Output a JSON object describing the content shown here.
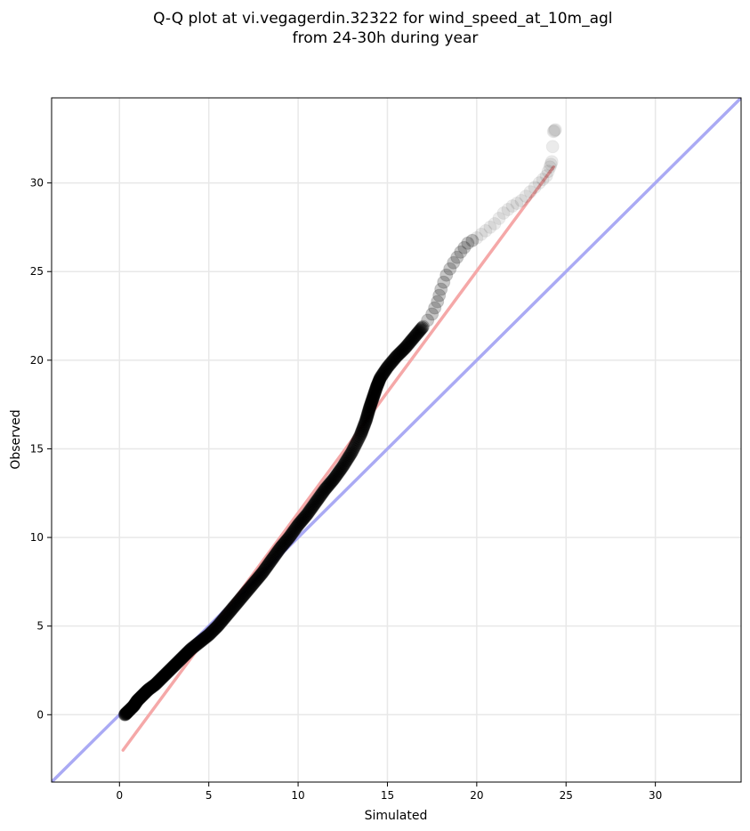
{
  "chart_data": {
    "type": "scatter",
    "title": "Q-Q plot at vi.vegagerdin.32322 for wind_speed_at_10m_agl\nfrom 24-30h during year",
    "xlabel": "Simulated",
    "ylabel": "Observed",
    "xlim": [
      -3.8,
      34.8
    ],
    "ylim": [
      -3.8,
      34.8
    ],
    "xticks": [
      0,
      5,
      10,
      15,
      20,
      25,
      30
    ],
    "yticks": [
      0,
      5,
      10,
      15,
      20,
      25,
      30
    ],
    "grid": true,
    "colors": {
      "points": "#000000",
      "identity_line": "#aaaaf4",
      "fit_line": "#f5a8a8",
      "grid": "#e8e8e8"
    },
    "identity_line": {
      "x": [
        -3.8,
        34.8
      ],
      "y": [
        -3.8,
        34.8
      ]
    },
    "fit_line": {
      "x": [
        0.2,
        24.3
      ],
      "y": [
        -2.0,
        30.9
      ]
    },
    "series": [
      {
        "points": [
          [
            0.3,
            0.0
          ],
          [
            0.5,
            0.2
          ],
          [
            0.8,
            0.5
          ],
          [
            1.0,
            0.8
          ],
          [
            1.3,
            1.1
          ],
          [
            1.6,
            1.4
          ],
          [
            2.0,
            1.7
          ],
          [
            2.4,
            2.1
          ],
          [
            2.8,
            2.5
          ],
          [
            3.2,
            2.9
          ],
          [
            3.6,
            3.3
          ],
          [
            4.0,
            3.7
          ],
          [
            4.5,
            4.1
          ],
          [
            5.0,
            4.5
          ],
          [
            5.5,
            5.0
          ],
          [
            6.0,
            5.6
          ],
          [
            6.5,
            6.2
          ],
          [
            7.0,
            6.8
          ],
          [
            7.5,
            7.4
          ],
          [
            8.0,
            8.0
          ],
          [
            8.5,
            8.7
          ],
          [
            9.0,
            9.4
          ],
          [
            9.5,
            10.0
          ],
          [
            10.0,
            10.7
          ],
          [
            10.5,
            11.3
          ],
          [
            11.0,
            12.0
          ],
          [
            11.5,
            12.7
          ],
          [
            12.0,
            13.3
          ],
          [
            12.5,
            14.0
          ],
          [
            13.0,
            14.8
          ],
          [
            13.5,
            15.8
          ],
          [
            13.8,
            16.6
          ],
          [
            14.0,
            17.3
          ],
          [
            14.2,
            17.9
          ],
          [
            14.4,
            18.5
          ],
          [
            14.6,
            19.0
          ],
          [
            15.0,
            19.6
          ],
          [
            15.5,
            20.2
          ],
          [
            16.0,
            20.7
          ],
          [
            16.5,
            21.3
          ],
          [
            17.0,
            21.9
          ],
          [
            17.5,
            22.6
          ],
          [
            17.8,
            23.3
          ],
          [
            18.0,
            24.0
          ],
          [
            18.3,
            24.8
          ],
          [
            18.7,
            25.5
          ],
          [
            19.1,
            26.1
          ],
          [
            19.5,
            26.6
          ],
          [
            20.0,
            26.9
          ],
          [
            20.5,
            27.3
          ],
          [
            21.0,
            27.7
          ],
          [
            21.5,
            28.3
          ],
          [
            22.0,
            28.7
          ],
          [
            22.5,
            29.0
          ],
          [
            23.0,
            29.5
          ],
          [
            23.5,
            30.0
          ],
          [
            23.9,
            30.4
          ],
          [
            24.1,
            30.9
          ],
          [
            24.2,
            31.2
          ],
          [
            24.3,
            32.9
          ],
          [
            24.4,
            33.0
          ]
        ]
      }
    ]
  }
}
